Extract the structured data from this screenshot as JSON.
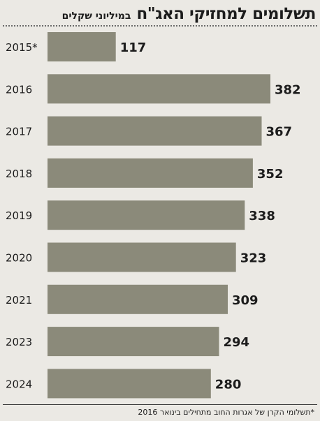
{
  "header": {
    "title": "תשלומים למחזיקי האג\"ח",
    "subtitle": "במיליוני שקלים"
  },
  "footnote": "*תשלומי הקרן של אגרות החוב מתחילים בינואר 2016",
  "colors": {
    "bar": "#8b8a7a",
    "background": "#ebe9e4",
    "text": "#1c1c1c"
  },
  "chart_data": {
    "type": "bar",
    "orientation": "horizontal",
    "title": "תשלומים למחזיקי האג\"ח",
    "subtitle": "במיליוני שקלים",
    "categories": [
      "2015*",
      "2016",
      "2017",
      "2018",
      "2019",
      "2020",
      "2021",
      "2023",
      "2024"
    ],
    "values": [
      117,
      382,
      367,
      352,
      338,
      323,
      309,
      294,
      280
    ],
    "data_labels": [
      "117",
      "382",
      "367",
      "352",
      "338",
      "323",
      "309",
      "294",
      "280"
    ],
    "xlabel": "",
    "ylabel": "",
    "xlim": [
      0,
      382
    ],
    "grid": false,
    "legend": "none"
  }
}
